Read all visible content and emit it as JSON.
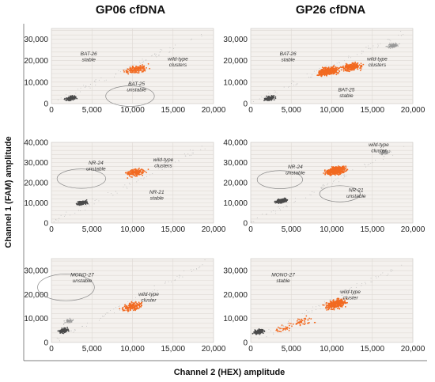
{
  "column_titles": [
    "GP06 cfDNA",
    "GP26 cfDNA"
  ],
  "y_axis_title": "Channel 1 (FAM) amplitude",
  "x_axis_title": "Channel 2 (HEX) amplitude",
  "colors": {
    "orange": "#f26a21",
    "dark": "#4a4a4a",
    "light": "#9a9a9a"
  },
  "chart_data": [
    {
      "type": "scatter",
      "row": 0,
      "col": 0,
      "title": "GP06 cfDNA",
      "xlim": [
        0,
        20000
      ],
      "ylim": [
        0,
        35000
      ],
      "xticks": [
        "0",
        "5,000",
        "10,000",
        "15,000",
        "20,000"
      ],
      "yticks": [
        "0",
        "10,000",
        "20,000",
        "30,000"
      ],
      "clusters": [
        {
          "color": "orange",
          "x": 10500,
          "y": 16000,
          "n": 150
        },
        {
          "color": "dark",
          "x": 2400,
          "y": 2500,
          "n": 110
        }
      ],
      "annotations": [
        {
          "text": [
            "BAT-26",
            "stable"
          ],
          "x": 4600,
          "y": 22500
        },
        {
          "text": [
            "wild-type",
            "clusters"
          ],
          "x": 15600,
          "y": 20000
        },
        {
          "text": [
            "BAT-25",
            "unstable"
          ],
          "x": 10500,
          "y": 8500
        }
      ],
      "rings": [
        {
          "x": 9700,
          "y": 3500,
          "r": 3000
        }
      ]
    },
    {
      "type": "scatter",
      "row": 0,
      "col": 1,
      "title": "GP26 cfDNA",
      "xlim": [
        0,
        20000
      ],
      "ylim": [
        0,
        35000
      ],
      "xticks": [
        "0",
        "5,000",
        "10,000",
        "15,000",
        "20,000"
      ],
      "yticks": [
        "0",
        "10,000",
        "20,000",
        "30,000"
      ],
      "clusters": [
        {
          "color": "orange",
          "x": 9500,
          "y": 15000,
          "n": 420
        },
        {
          "color": "orange",
          "x": 12500,
          "y": 17000,
          "n": 220
        },
        {
          "color": "dark",
          "x": 2400,
          "y": 2500,
          "n": 140
        },
        {
          "color": "light",
          "x": 17500,
          "y": 27000,
          "n": 150
        }
      ],
      "annotations": [
        {
          "text": [
            "BAT-26",
            "stable"
          ],
          "x": 4600,
          "y": 22500
        },
        {
          "text": [
            "wild-type",
            "clusters"
          ],
          "x": 15600,
          "y": 20000
        },
        {
          "text": [
            "BAT-25",
            "stable"
          ],
          "x": 11800,
          "y": 5800
        }
      ],
      "rings": []
    },
    {
      "type": "scatter",
      "row": 1,
      "col": 0,
      "title": "",
      "xlim": [
        0,
        20000
      ],
      "ylim": [
        0,
        40000
      ],
      "xticks": [
        "0",
        "5,000",
        "10,000",
        "15,000",
        "20,000"
      ],
      "yticks": [
        "0",
        "10,000",
        "20,000",
        "30,000",
        "40,000"
      ],
      "clusters": [
        {
          "color": "orange",
          "x": 10500,
          "y": 25000,
          "n": 150
        },
        {
          "color": "dark",
          "x": 3800,
          "y": 10000,
          "n": 130
        }
      ],
      "annotations": [
        {
          "text": [
            "NR-24",
            "unstable"
          ],
          "x": 5500,
          "y": 29000
        },
        {
          "text": [
            "wild-type",
            "clusters"
          ],
          "x": 13800,
          "y": 30500
        },
        {
          "text": [
            "NR-21",
            "stable"
          ],
          "x": 13000,
          "y": 14500
        }
      ],
      "rings": [
        {
          "x": 3700,
          "y": 22000,
          "r": 3000
        }
      ]
    },
    {
      "type": "scatter",
      "row": 1,
      "col": 1,
      "title": "",
      "xlim": [
        0,
        20000
      ],
      "ylim": [
        0,
        40000
      ],
      "xticks": [
        "0",
        "5,000",
        "10,000",
        "15,000",
        "20,000"
      ],
      "yticks": [
        "0",
        "10,000",
        "20,000",
        "30,000",
        "40,000"
      ],
      "clusters": [
        {
          "color": "orange",
          "x": 10500,
          "y": 26000,
          "n": 480
        },
        {
          "color": "dark",
          "x": 3800,
          "y": 11000,
          "n": 180
        },
        {
          "color": "light",
          "x": 16500,
          "y": 35000,
          "n": 100
        }
      ],
      "annotations": [
        {
          "text": [
            "NR-24",
            "unstable"
          ],
          "x": 5500,
          "y": 27000
        },
        {
          "text": [
            "wild-type",
            "cluster"
          ],
          "x": 15800,
          "y": 38000
        },
        {
          "text": [
            "NR-21",
            "unstable"
          ],
          "x": 13000,
          "y": 15500
        }
      ],
      "rings": [
        {
          "x": 3600,
          "y": 21500,
          "r": 2800
        },
        {
          "x": 11000,
          "y": 14500,
          "r": 2500
        }
      ]
    },
    {
      "type": "scatter",
      "row": 2,
      "col": 0,
      "title": "",
      "xlim": [
        0,
        20000
      ],
      "ylim": [
        0,
        35000
      ],
      "xticks": [
        "0",
        "5,000",
        "10,000",
        "15,000",
        "20,000"
      ],
      "yticks": [
        "0",
        "10,000",
        "20,000",
        "30,000"
      ],
      "clusters": [
        {
          "color": "orange",
          "x": 10000,
          "y": 15000,
          "n": 150
        },
        {
          "color": "dark",
          "x": 1500,
          "y": 5000,
          "n": 90
        },
        {
          "color": "light",
          "x": 2200,
          "y": 9000,
          "n": 60
        }
      ],
      "annotations": [
        {
          "text": [
            "MONO-27",
            "unstable"
          ],
          "x": 3800,
          "y": 27500
        },
        {
          "text": [
            "wild-type",
            "cluster"
          ],
          "x": 12000,
          "y": 19500
        }
      ],
      "rings": [
        {
          "x": 1800,
          "y": 23000,
          "r": 3500
        }
      ]
    },
    {
      "type": "scatter",
      "row": 2,
      "col": 1,
      "title": "",
      "xlim": [
        0,
        20000
      ],
      "ylim": [
        0,
        35000
      ],
      "xticks": [
        "0",
        "5,000",
        "10,000",
        "15,000",
        "20,000"
      ],
      "yticks": [
        "0",
        "10,000",
        "20,000",
        "30,000"
      ],
      "clusters": [
        {
          "color": "orange",
          "x": 10500,
          "y": 16000,
          "n": 320
        },
        {
          "color": "orange",
          "x": 6500,
          "y": 9000,
          "n": 45
        },
        {
          "color": "orange",
          "x": 4000,
          "y": 6000,
          "n": 30
        },
        {
          "color": "dark",
          "x": 1000,
          "y": 4500,
          "n": 140
        }
      ],
      "annotations": [
        {
          "text": [
            "MONO-27",
            "stable"
          ],
          "x": 4000,
          "y": 27500
        },
        {
          "text": [
            "wild-type",
            "cluster"
          ],
          "x": 12300,
          "y": 20500
        }
      ],
      "rings": []
    }
  ]
}
